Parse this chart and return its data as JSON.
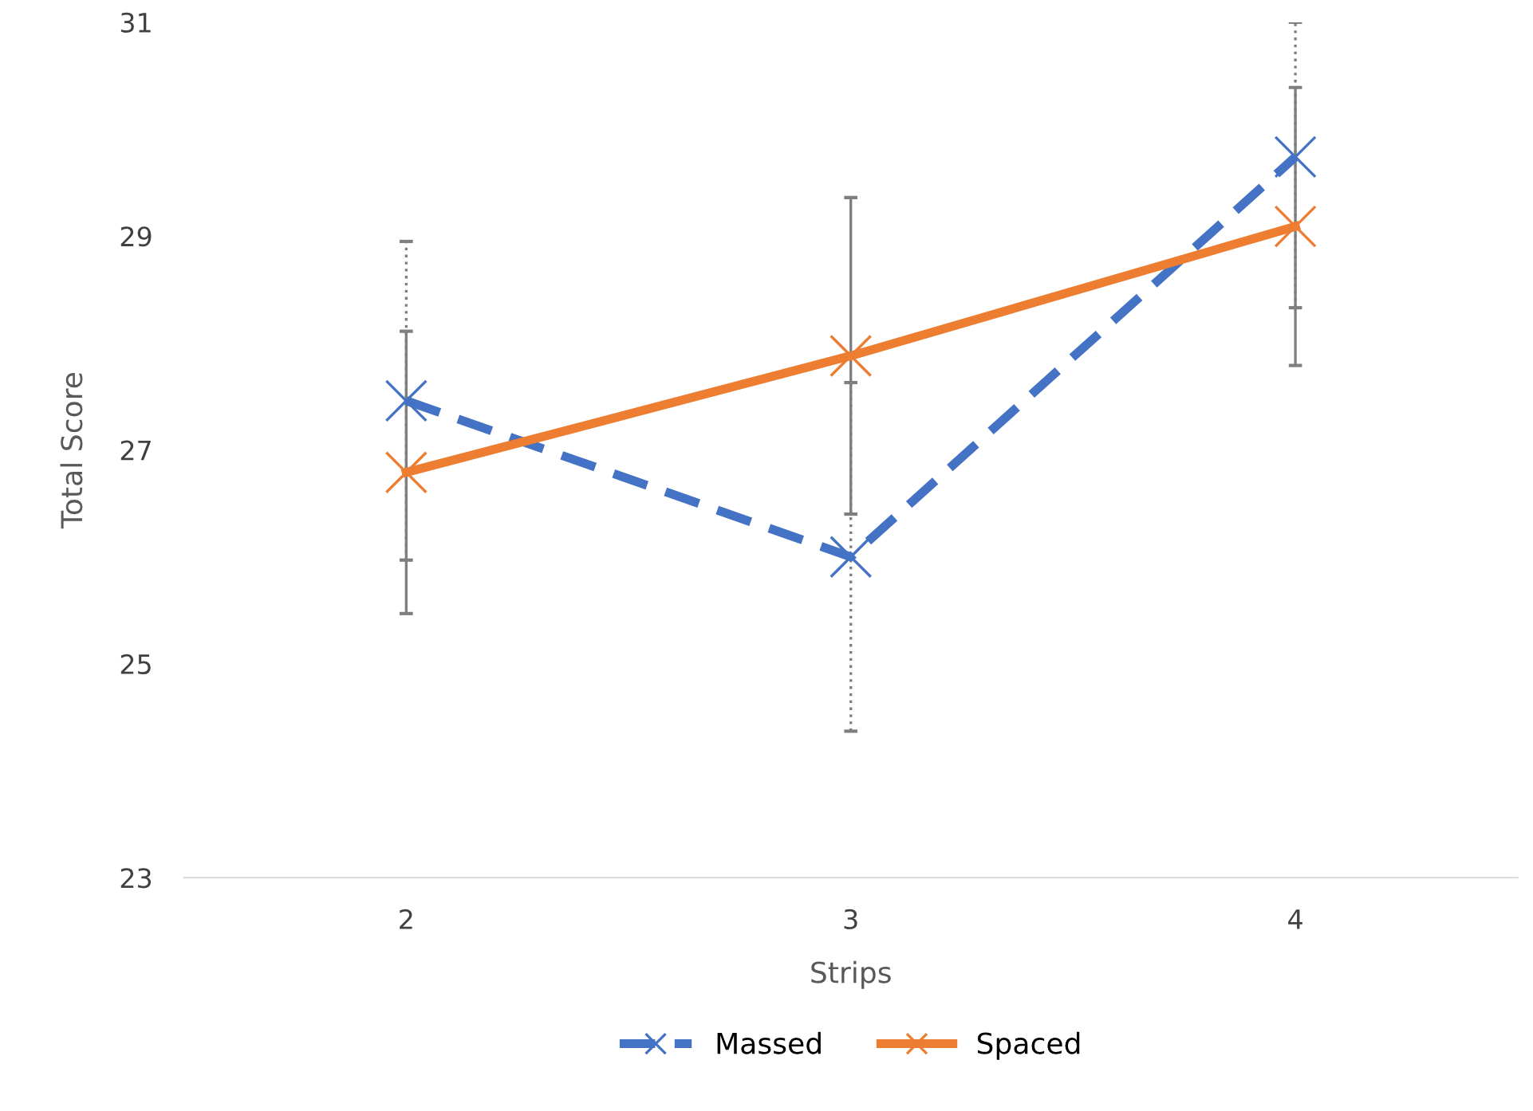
{
  "chart_data": {
    "type": "line",
    "xlabel": "Strips",
    "ylabel": "Total Score",
    "categories": [
      "2",
      "3",
      "4"
    ],
    "series": [
      {
        "name": "Massed",
        "color": "#4472c4",
        "line_style": "dashed",
        "values": [
          27.46,
          26.0,
          29.74
        ],
        "errors": [
          1.49,
          1.63,
          [
            28.33,
            31
          ]
        ]
      },
      {
        "name": "Spaced",
        "color": "#ed7d31",
        "line_style": "solid",
        "values": [
          26.79,
          27.88,
          29.09
        ],
        "errors": [
          1.32,
          1.48,
          1.3
        ]
      }
    ],
    "ylim": [
      23,
      31
    ],
    "yticks": [
      23,
      25,
      27,
      29,
      31
    ],
    "marker": "cross",
    "grid": false,
    "legend": "bottom"
  }
}
